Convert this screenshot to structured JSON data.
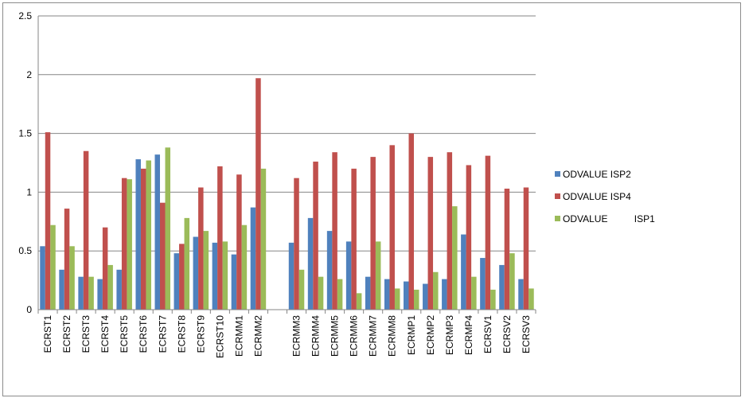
{
  "chart_data": {
    "type": "bar",
    "title": "",
    "xlabel": "",
    "ylabel": "",
    "ylim": [
      0,
      2.5
    ],
    "yticks": [
      "0",
      "0.5",
      "1",
      "1.5",
      "2",
      "2.5"
    ],
    "grid": true,
    "legend_position": "right",
    "categories": [
      "ECRST1",
      "ECRST2",
      "ECRST3",
      "ECRST4",
      "ECRST5",
      "ECRST6",
      "ECRST7",
      "ECRST8",
      "ECRST9",
      "ECRST10",
      "ECRMM1",
      "ECRMM2",
      "",
      "ECRMM3",
      "ECRMM4",
      "ECRMM5",
      "ECRMM6",
      "ECRMM7",
      "ECRMM8",
      "ECRMP1",
      "ECRMP2",
      "ECRMP3",
      "ECRMP4",
      "ECRSV1",
      "ECRSV2",
      "ECRSV3"
    ],
    "series": [
      {
        "name": "ODVALUE ISP2",
        "color": "#4f81bd",
        "values": [
          0.54,
          0.34,
          0.28,
          0.26,
          0.34,
          1.28,
          1.32,
          0.48,
          0.62,
          0.57,
          0.47,
          0.87,
          null,
          0.57,
          0.78,
          0.67,
          0.58,
          0.28,
          0.26,
          0.24,
          0.22,
          0.26,
          0.64,
          0.44,
          0.38,
          0.26
        ]
      },
      {
        "name": "ODVALUE ISP4",
        "color": "#c0504d",
        "values": [
          1.51,
          0.86,
          1.35,
          0.7,
          1.12,
          1.2,
          0.91,
          0.56,
          1.04,
          1.22,
          1.15,
          1.97,
          null,
          1.12,
          1.26,
          1.34,
          1.2,
          1.3,
          1.4,
          1.5,
          1.3,
          1.34,
          1.23,
          1.31,
          1.03,
          1.04
        ]
      },
      {
        "name": "ODVALUE          ISP1",
        "color": "#9bbb59",
        "values": [
          0.72,
          0.54,
          0.28,
          0.38,
          1.11,
          1.27,
          1.38,
          0.78,
          0.67,
          0.58,
          0.72,
          1.2,
          null,
          0.34,
          0.28,
          0.26,
          0.14,
          0.58,
          0.18,
          0.17,
          0.32,
          0.88,
          0.28,
          0.17,
          0.48,
          0.18
        ]
      }
    ]
  }
}
